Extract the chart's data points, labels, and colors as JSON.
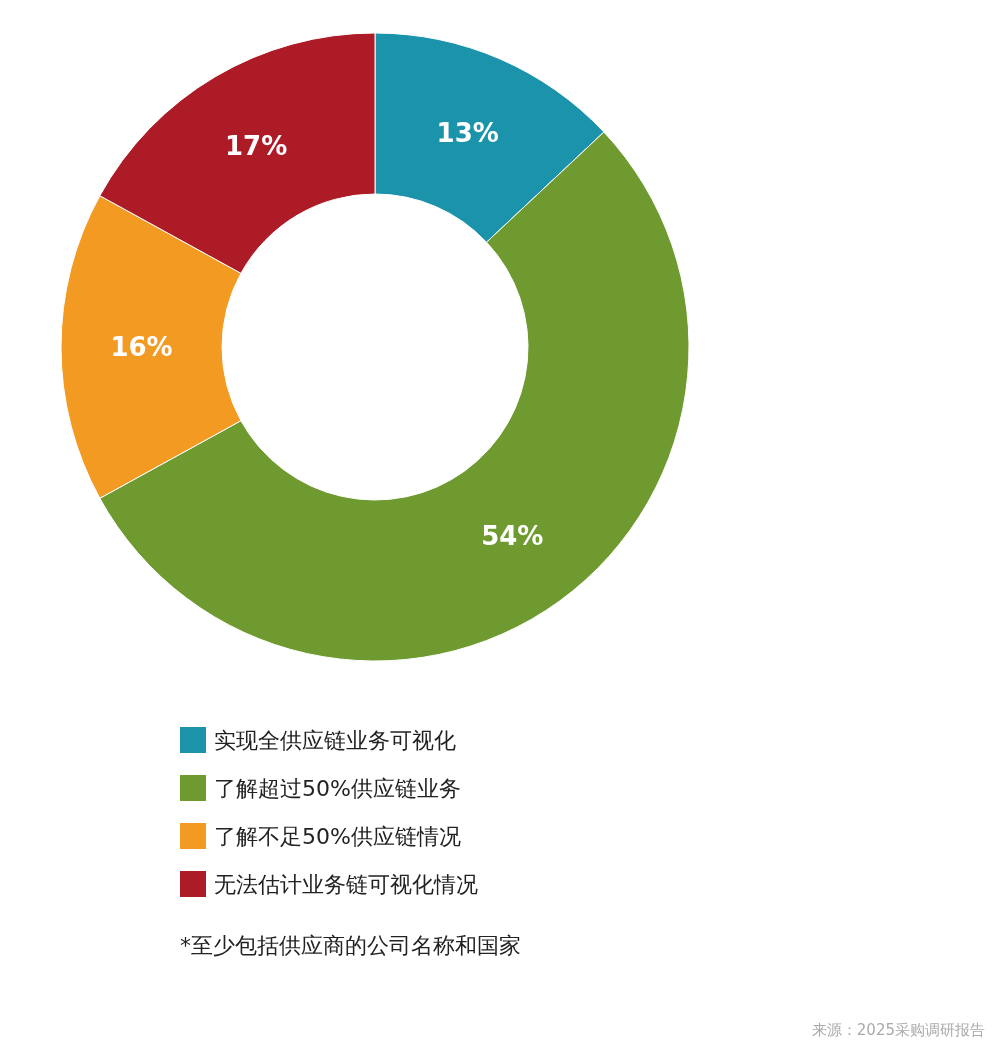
{
  "chart_data": {
    "type": "donut",
    "categories": [
      "实现全供应链业务可视化",
      "了解超过50%供应链业务",
      "了解不足50%供应链情况",
      "无法估计业务链可视化情况"
    ],
    "values": [
      13,
      54,
      16,
      17
    ],
    "value_labels": [
      "13%",
      "54%",
      "16%",
      "17%"
    ],
    "colors": [
      "#1a93ab",
      "#6e9a2f",
      "#f39a22",
      "#ad1b27"
    ],
    "legend": "bottom",
    "annotations": [
      "*至少包括供应商的公司名称和国家",
      "来源：2025采购调研报告"
    ]
  }
}
